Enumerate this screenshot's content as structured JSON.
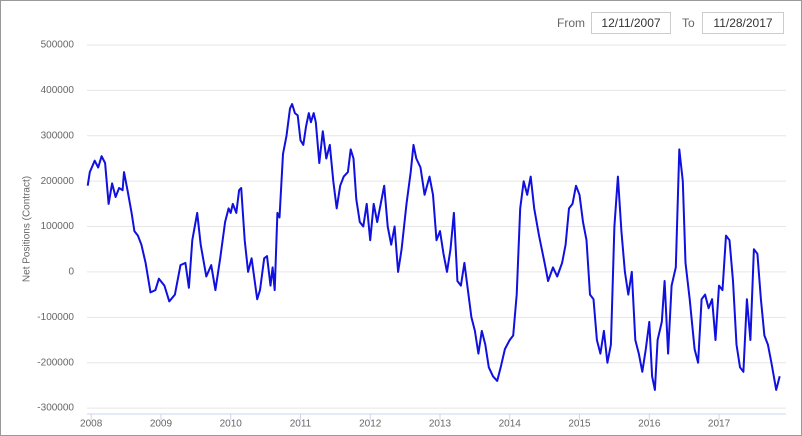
{
  "controls": {
    "from_label": "From",
    "from": "12/11/2007",
    "to_label": "To",
    "to": "11/28/2017"
  },
  "chart_data": {
    "type": "line",
    "y_label": "Net Positions (Contract)",
    "color": "#1010e0",
    "grid": true,
    "xlim": [
      2007.94,
      2017.96
    ],
    "xticks": [
      2008,
      2009,
      2010,
      2011,
      2012,
      2013,
      2014,
      2015,
      2016,
      2017
    ],
    "ylim": [
      -313000,
      500000
    ],
    "yticks": [
      -300000,
      -200000,
      -100000,
      0,
      100000,
      200000,
      300000,
      400000,
      500000
    ],
    "x": [
      2007.95,
      2007.98,
      2008.05,
      2008.1,
      2008.15,
      2008.2,
      2008.25,
      2008.3,
      2008.35,
      2008.4,
      2008.45,
      2008.47,
      2008.52,
      2008.58,
      2008.62,
      2008.67,
      2008.72,
      2008.78,
      2008.85,
      2008.92,
      2008.97,
      2009.05,
      2009.12,
      2009.2,
      2009.28,
      2009.35,
      2009.4,
      2009.45,
      2009.52,
      2009.57,
      2009.65,
      2009.72,
      2009.78,
      2009.85,
      2009.92,
      2009.97,
      2010.0,
      2010.03,
      2010.08,
      2010.12,
      2010.15,
      2010.2,
      2010.25,
      2010.3,
      2010.38,
      2010.42,
      2010.48,
      2010.52,
      2010.57,
      2010.6,
      2010.63,
      2010.67,
      2010.7,
      2010.75,
      2010.8,
      2010.85,
      2010.88,
      2010.92,
      2010.96,
      2011.0,
      2011.04,
      2011.08,
      2011.12,
      2011.15,
      2011.19,
      2011.22,
      2011.27,
      2011.32,
      2011.37,
      2011.42,
      2011.47,
      2011.52,
      2011.57,
      2011.62,
      2011.68,
      2011.72,
      2011.76,
      2011.8,
      2011.85,
      2011.9,
      2011.95,
      2012.0,
      2012.05,
      2012.1,
      2012.15,
      2012.2,
      2012.25,
      2012.3,
      2012.35,
      2012.4,
      2012.45,
      2012.52,
      2012.58,
      2012.62,
      2012.66,
      2012.72,
      2012.78,
      2012.85,
      2012.9,
      2012.95,
      2013.0,
      2013.05,
      2013.1,
      2013.15,
      2013.2,
      2013.25,
      2013.3,
      2013.35,
      2013.4,
      2013.45,
      2013.5,
      2013.55,
      2013.6,
      2013.65,
      2013.7,
      2013.76,
      2013.82,
      2013.87,
      2013.93,
      2014.0,
      2014.05,
      2014.1,
      2014.15,
      2014.2,
      2014.25,
      2014.3,
      2014.35,
      2014.42,
      2014.5,
      2014.55,
      2014.62,
      2014.68,
      2014.75,
      2014.8,
      2014.85,
      2014.9,
      2014.95,
      2015.0,
      2015.05,
      2015.1,
      2015.15,
      2015.2,
      2015.25,
      2015.3,
      2015.35,
      2015.4,
      2015.45,
      2015.5,
      2015.55,
      2015.6,
      2015.65,
      2015.7,
      2015.75,
      2015.8,
      2015.85,
      2015.9,
      2015.95,
      2016.0,
      2016.04,
      2016.08,
      2016.12,
      2016.18,
      2016.22,
      2016.27,
      2016.32,
      2016.38,
      2016.43,
      2016.48,
      2016.52,
      2016.58,
      2016.65,
      2016.7,
      2016.75,
      2016.8,
      2016.85,
      2016.9,
      2016.95,
      2017.0,
      2017.05,
      2017.1,
      2017.15,
      2017.2,
      2017.25,
      2017.3,
      2017.35,
      2017.4,
      2017.45,
      2017.5,
      2017.55,
      2017.6,
      2017.65,
      2017.7,
      2017.75,
      2017.82,
      2017.87
    ],
    "values": [
      190000,
      220000,
      245000,
      230000,
      255000,
      240000,
      150000,
      195000,
      165000,
      185000,
      180000,
      220000,
      180000,
      130000,
      90000,
      80000,
      60000,
      20000,
      -45000,
      -40000,
      -15000,
      -30000,
      -65000,
      -50000,
      15000,
      20000,
      -35000,
      70000,
      130000,
      60000,
      -10000,
      15000,
      -40000,
      30000,
      110000,
      140000,
      130000,
      150000,
      130000,
      180000,
      185000,
      70000,
      0,
      30000,
      -60000,
      -40000,
      30000,
      35000,
      -30000,
      10000,
      -40000,
      130000,
      120000,
      260000,
      300000,
      360000,
      370000,
      350000,
      345000,
      290000,
      280000,
      320000,
      350000,
      330000,
      350000,
      330000,
      240000,
      310000,
      250000,
      280000,
      200000,
      140000,
      190000,
      210000,
      220000,
      270000,
      250000,
      160000,
      110000,
      100000,
      150000,
      70000,
      150000,
      110000,
      150000,
      190000,
      100000,
      60000,
      100000,
      0,
      50000,
      150000,
      220000,
      280000,
      250000,
      230000,
      170000,
      210000,
      170000,
      70000,
      90000,
      40000,
      0,
      50000,
      130000,
      -20000,
      -30000,
      20000,
      -40000,
      -100000,
      -130000,
      -180000,
      -130000,
      -160000,
      -210000,
      -230000,
      -240000,
      -210000,
      -170000,
      -150000,
      -140000,
      -50000,
      140000,
      200000,
      170000,
      210000,
      140000,
      80000,
      20000,
      -20000,
      10000,
      -10000,
      20000,
      60000,
      140000,
      150000,
      190000,
      170000,
      110000,
      70000,
      -50000,
      -60000,
      -150000,
      -180000,
      -130000,
      -200000,
      -160000,
      100000,
      210000,
      90000,
      0,
      -50000,
      0,
      -150000,
      -180000,
      -220000,
      -170000,
      -110000,
      -230000,
      -260000,
      -150000,
      -110000,
      -20000,
      -180000,
      -30000,
      10000,
      270000,
      200000,
      20000,
      -60000,
      -170000,
      -200000,
      -60000,
      -50000,
      -80000,
      -60000,
      -150000,
      -30000,
      -40000,
      80000,
      70000,
      -20000,
      -160000,
      -210000,
      -220000,
      -60000,
      -150000,
      50000,
      40000,
      -60000,
      -140000,
      -160000,
      -200000,
      -260000,
      -230000
    ]
  }
}
